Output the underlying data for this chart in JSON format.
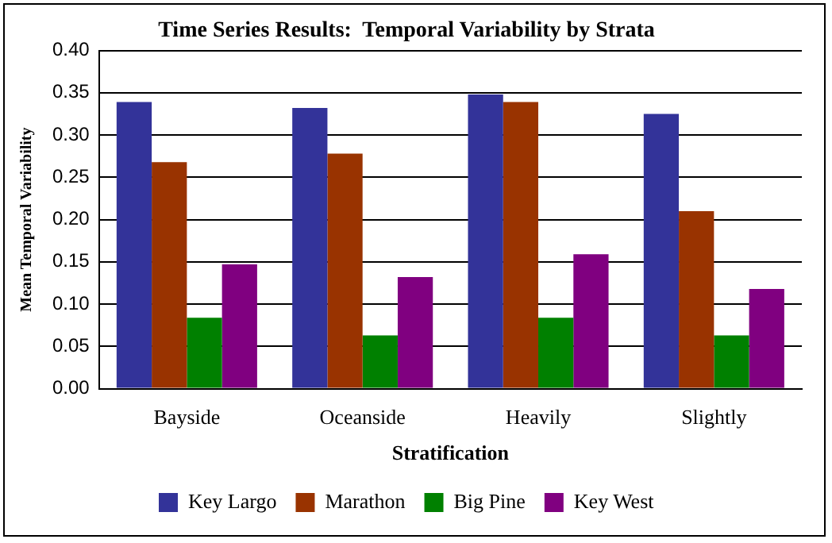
{
  "chart_data": {
    "type": "bar",
    "title": "Time Series Results:  Temporal Variability by Strata",
    "xlabel": "Stratification",
    "ylabel": "Mean Temporal Variability",
    "categories": [
      "Bayside",
      "Oceanside",
      "Heavily",
      "Slightly"
    ],
    "series": [
      {
        "name": "Key Largo",
        "color": "#333399",
        "values": [
          0.339,
          0.332,
          0.348,
          0.325
        ]
      },
      {
        "name": "Marathon",
        "color": "#993300",
        "values": [
          0.268,
          0.278,
          0.339,
          0.21
        ]
      },
      {
        "name": "Big Pine",
        "color": "#008000",
        "values": [
          0.084,
          0.063,
          0.084,
          0.063
        ]
      },
      {
        "name": "Key West",
        "color": "#800080",
        "values": [
          0.147,
          0.132,
          0.159,
          0.118
        ]
      }
    ],
    "ylim": [
      0,
      0.4
    ],
    "yticks": [
      {
        "value": 0,
        "label": "0.00"
      },
      {
        "value": 0.05,
        "label": "0.05"
      },
      {
        "value": 0.1,
        "label": "0.10"
      },
      {
        "value": 0.15,
        "label": "0.15"
      },
      {
        "value": 0.2,
        "label": "0.20"
      },
      {
        "value": 0.25,
        "label": "0.25"
      },
      {
        "value": 0.3,
        "label": "0.30"
      },
      {
        "value": 0.35,
        "label": "0.35"
      },
      {
        "value": 0.4,
        "label": "0.40"
      }
    ],
    "grid": "y",
    "legend": "bottom"
  }
}
